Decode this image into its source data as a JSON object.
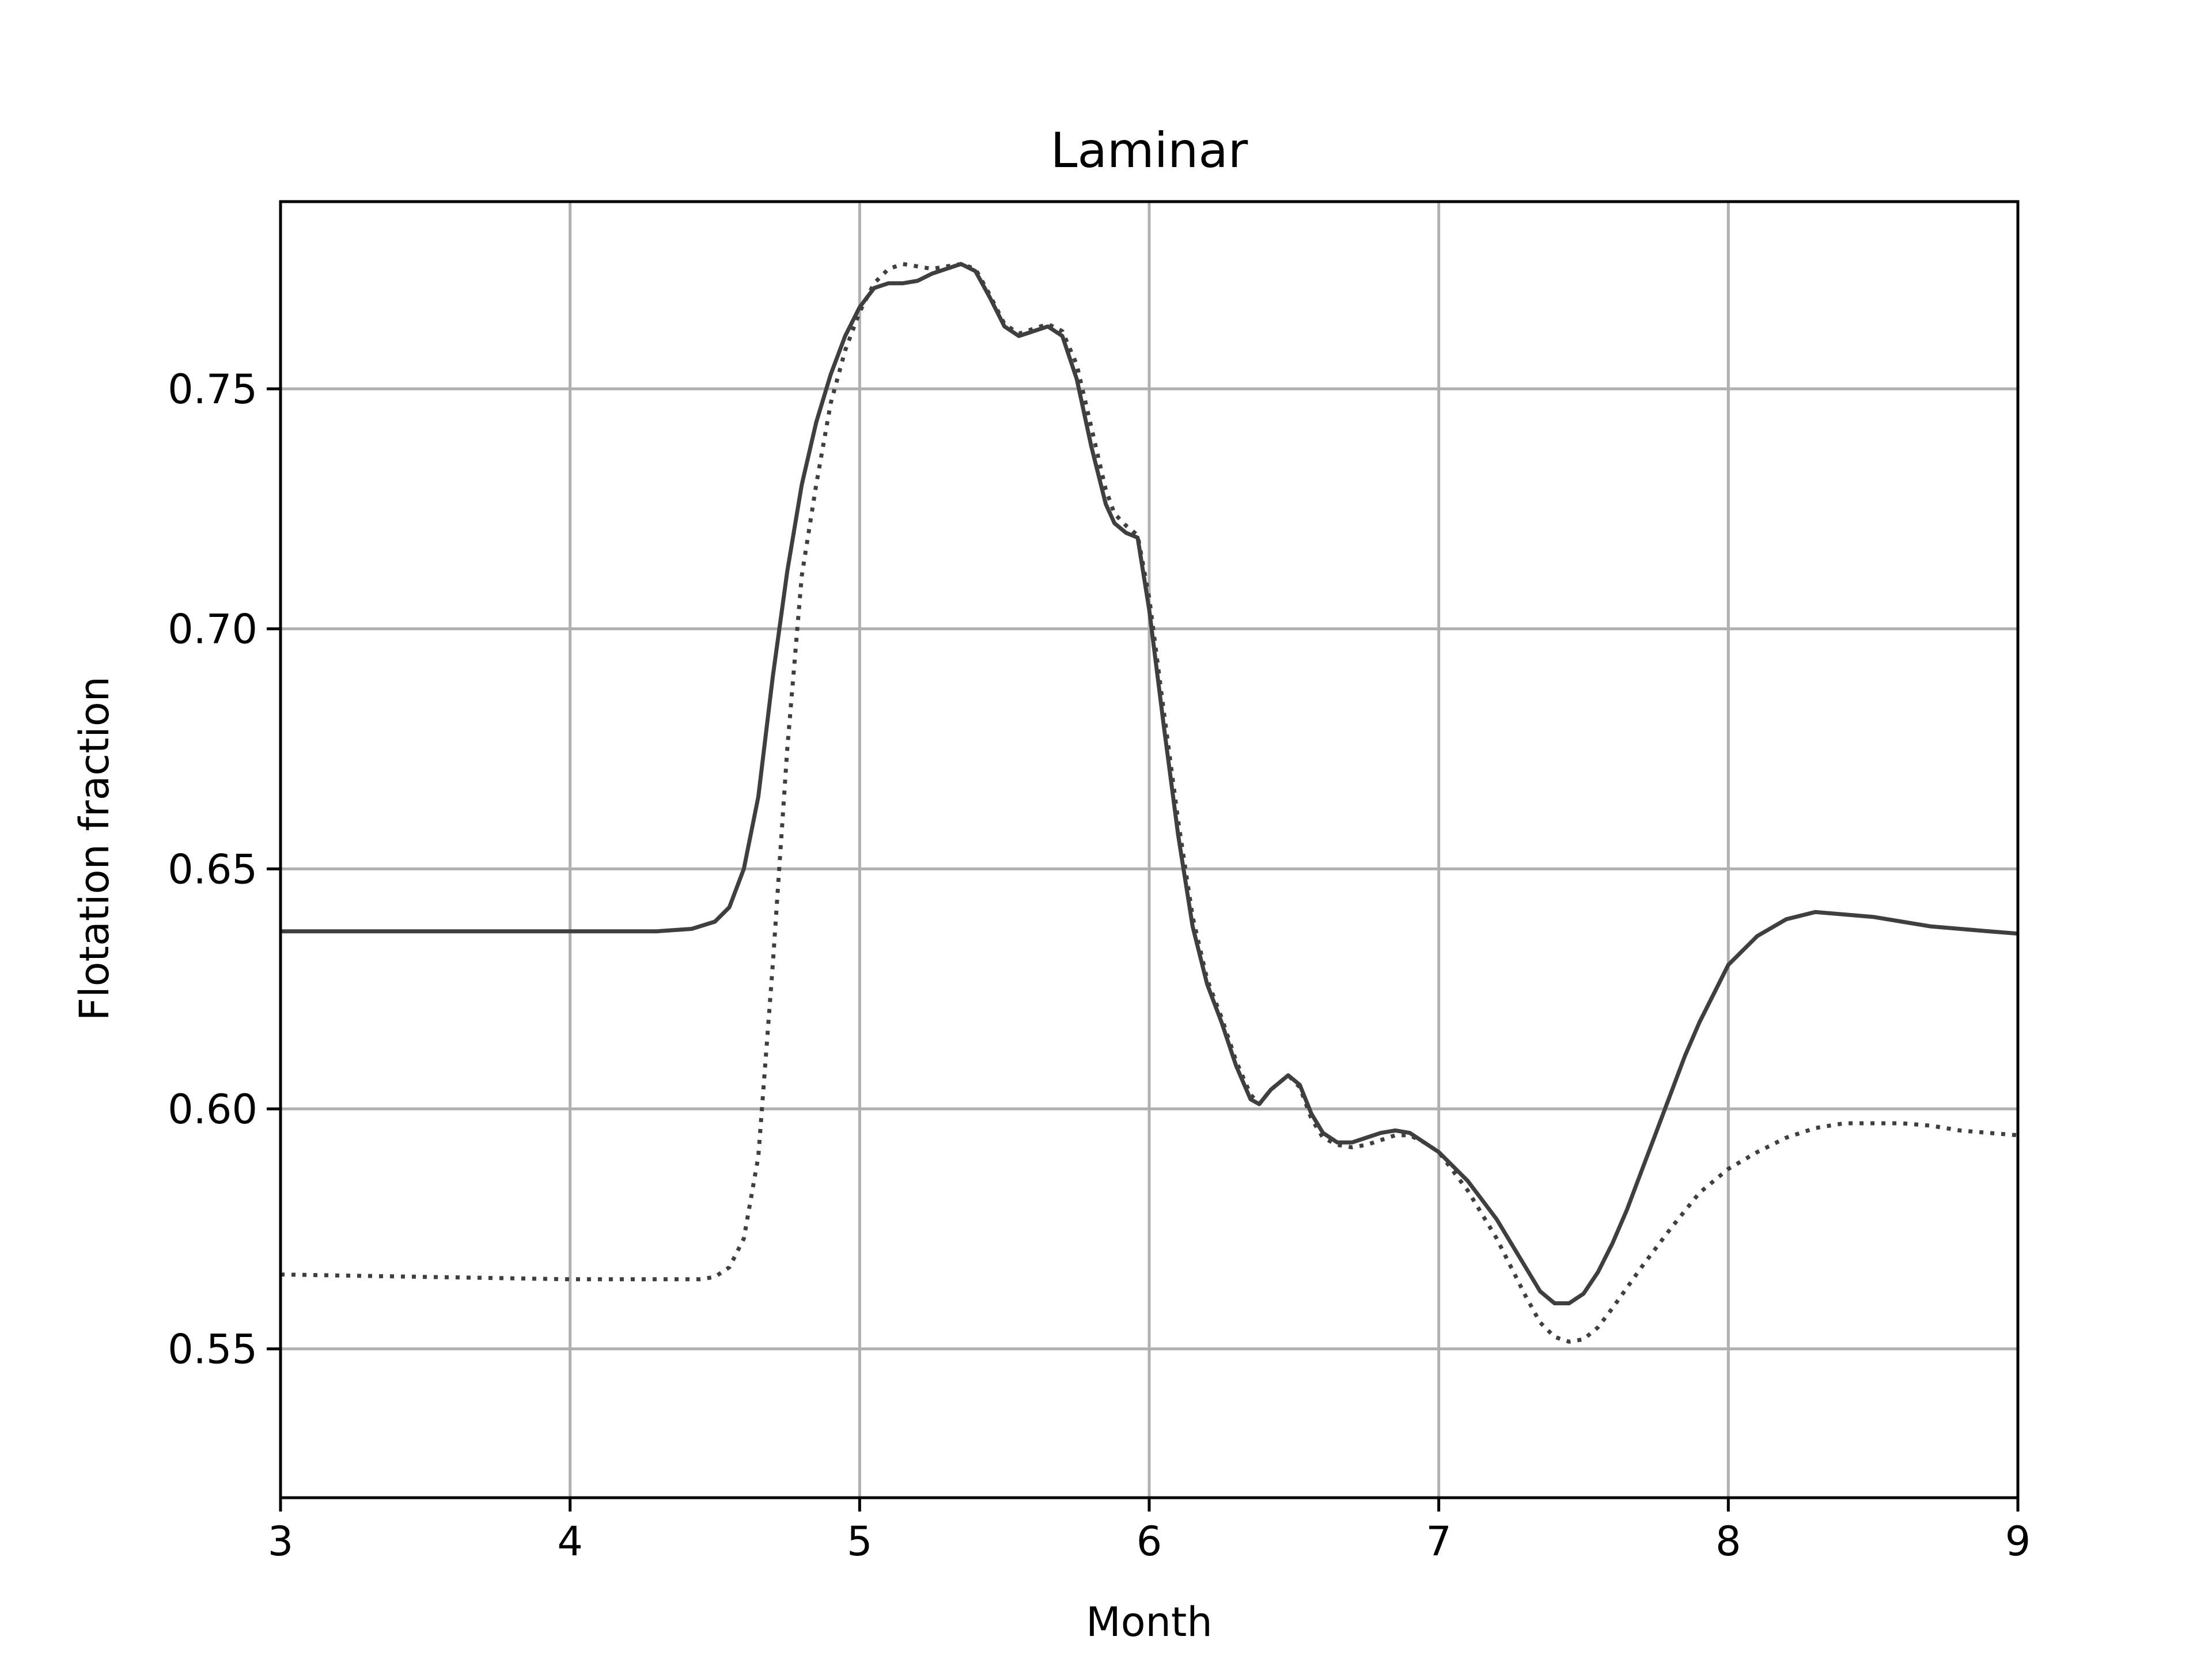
{
  "chart_data": {
    "type": "line",
    "title": "Laminar",
    "xlabel": "Month",
    "ylabel": "Flotation fraction",
    "xlim": [
      3,
      9
    ],
    "ylim": [
      0.519,
      0.789
    ],
    "xticks": [
      3,
      4,
      5,
      6,
      7,
      8,
      9
    ],
    "xtick_labels": [
      "3",
      "4",
      "5",
      "6",
      "7",
      "8",
      "9"
    ],
    "yticks": [
      0.55,
      0.6,
      0.65,
      0.7,
      0.75
    ],
    "ytick_labels": [
      "0.55",
      "0.60",
      "0.65",
      "0.70",
      "0.75"
    ],
    "grid": true,
    "legend": "none",
    "colors": {
      "line": "#3f3f3f",
      "grid": "#b0b0b0",
      "axes": "#000000"
    },
    "series": [
      {
        "style": "solid",
        "x": [
          3.0,
          3.5,
          4.0,
          4.3,
          4.42,
          4.5,
          4.55,
          4.6,
          4.65,
          4.7,
          4.75,
          4.8,
          4.85,
          4.9,
          4.95,
          5.0,
          5.05,
          5.1,
          5.15,
          5.2,
          5.25,
          5.3,
          5.35,
          5.4,
          5.45,
          5.5,
          5.55,
          5.6,
          5.65,
          5.7,
          5.75,
          5.8,
          5.85,
          5.88,
          5.92,
          5.96,
          6.0,
          6.05,
          6.1,
          6.15,
          6.2,
          6.25,
          6.3,
          6.35,
          6.38,
          6.42,
          6.48,
          6.52,
          6.56,
          6.6,
          6.65,
          6.7,
          6.75,
          6.8,
          6.85,
          6.9,
          6.95,
          7.0,
          7.05,
          7.1,
          7.15,
          7.2,
          7.25,
          7.3,
          7.35,
          7.4,
          7.45,
          7.5,
          7.55,
          7.6,
          7.65,
          7.7,
          7.75,
          7.8,
          7.85,
          7.9,
          7.95,
          8.0,
          8.1,
          8.2,
          8.3,
          8.4,
          8.5,
          8.6,
          8.7,
          8.8,
          8.9,
          9.0
        ],
        "y": [
          0.637,
          0.637,
          0.637,
          0.637,
          0.6375,
          0.639,
          0.642,
          0.65,
          0.665,
          0.69,
          0.712,
          0.73,
          0.743,
          0.753,
          0.761,
          0.767,
          0.771,
          0.772,
          0.772,
          0.7725,
          0.774,
          0.775,
          0.776,
          0.7745,
          0.769,
          0.763,
          0.761,
          0.762,
          0.763,
          0.761,
          0.752,
          0.738,
          0.726,
          0.722,
          0.72,
          0.719,
          0.704,
          0.68,
          0.657,
          0.638,
          0.626,
          0.618,
          0.609,
          0.602,
          0.601,
          0.604,
          0.607,
          0.605,
          0.599,
          0.595,
          0.593,
          0.593,
          0.594,
          0.595,
          0.5955,
          0.595,
          0.593,
          0.591,
          0.588,
          0.585,
          0.581,
          0.577,
          0.572,
          0.567,
          0.562,
          0.5595,
          0.5595,
          0.5615,
          0.566,
          0.572,
          0.579,
          0.587,
          0.595,
          0.603,
          0.611,
          0.618,
          0.624,
          0.63,
          0.636,
          0.6395,
          0.641,
          0.6405,
          0.64,
          0.639,
          0.638,
          0.6375,
          0.637,
          0.6365
        ]
      },
      {
        "style": "dotted",
        "x": [
          3.0,
          3.5,
          4.0,
          4.3,
          4.45,
          4.5,
          4.55,
          4.6,
          4.65,
          4.7,
          4.75,
          4.8,
          4.85,
          4.9,
          4.95,
          5.0,
          5.05,
          5.1,
          5.15,
          5.2,
          5.25,
          5.3,
          5.35,
          5.4,
          5.45,
          5.5,
          5.55,
          5.6,
          5.65,
          5.7,
          5.75,
          5.8,
          5.85,
          5.88,
          5.92,
          5.96,
          6.0,
          6.05,
          6.1,
          6.15,
          6.2,
          6.25,
          6.3,
          6.35,
          6.38,
          6.42,
          6.48,
          6.52,
          6.56,
          6.6,
          6.65,
          6.7,
          6.75,
          6.8,
          6.85,
          6.9,
          6.95,
          7.0,
          7.05,
          7.1,
          7.15,
          7.2,
          7.25,
          7.3,
          7.35,
          7.4,
          7.45,
          7.5,
          7.55,
          7.6,
          7.7,
          7.8,
          7.9,
          8.0,
          8.1,
          8.2,
          8.3,
          8.4,
          8.5,
          8.6,
          8.7,
          8.8,
          8.9,
          9.0
        ],
        "y": [
          0.5655,
          0.565,
          0.5645,
          0.5645,
          0.5645,
          0.565,
          0.567,
          0.573,
          0.59,
          0.63,
          0.675,
          0.711,
          0.73,
          0.747,
          0.758,
          0.766,
          0.772,
          0.775,
          0.776,
          0.7755,
          0.775,
          0.7755,
          0.776,
          0.775,
          0.7695,
          0.7635,
          0.7615,
          0.7625,
          0.7635,
          0.762,
          0.755,
          0.742,
          0.729,
          0.724,
          0.7215,
          0.7195,
          0.7065,
          0.683,
          0.66,
          0.64,
          0.627,
          0.619,
          0.61,
          0.603,
          0.601,
          0.604,
          0.607,
          0.6045,
          0.598,
          0.594,
          0.5925,
          0.592,
          0.5925,
          0.5935,
          0.5945,
          0.5945,
          0.593,
          0.591,
          0.587,
          0.583,
          0.578,
          0.573,
          0.567,
          0.561,
          0.5555,
          0.5525,
          0.5515,
          0.552,
          0.5545,
          0.5585,
          0.567,
          0.575,
          0.5825,
          0.5875,
          0.591,
          0.594,
          0.596,
          0.597,
          0.597,
          0.597,
          0.5965,
          0.5955,
          0.595,
          0.5945
        ]
      }
    ]
  }
}
